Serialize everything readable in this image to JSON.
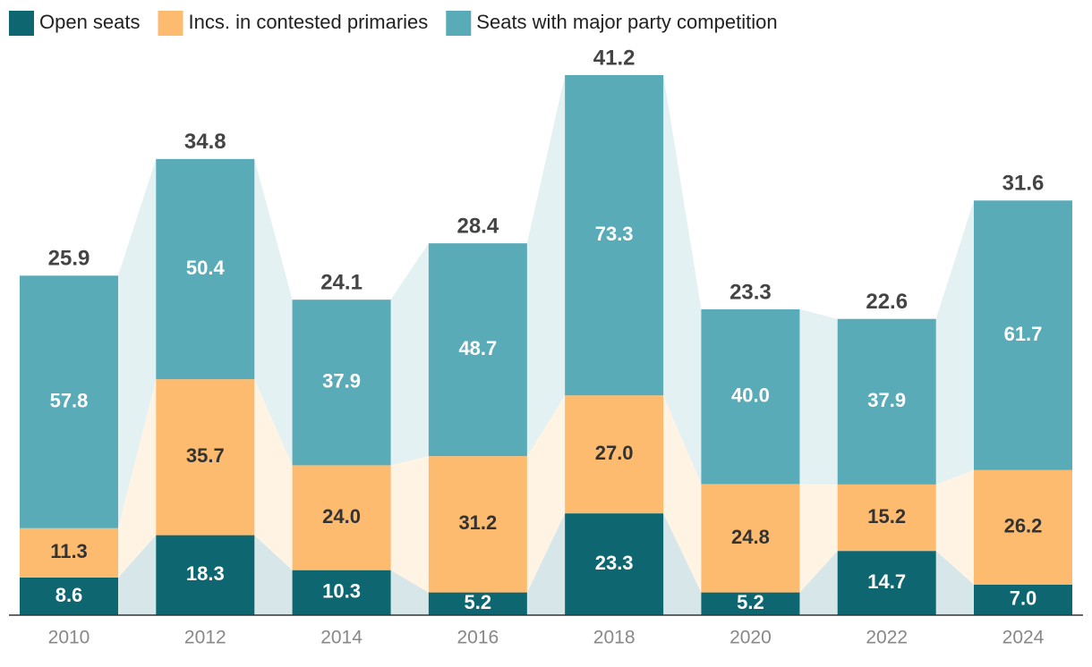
{
  "chart_data": {
    "type": "stacked-bar",
    "categories": [
      "2010",
      "2012",
      "2014",
      "2016",
      "2018",
      "2020",
      "2022",
      "2024"
    ],
    "series": [
      {
        "name": "Open seats",
        "color": "#0e6670",
        "label_color": "#ffffff",
        "values": [
          8.6,
          18.3,
          10.3,
          5.2,
          23.3,
          5.2,
          14.7,
          7.0
        ],
        "value_labels": [
          "8.6",
          "18.3",
          "10.3",
          "5.2",
          "23.3",
          "5.2",
          "14.7",
          "7.0"
        ]
      },
      {
        "name": "Incs. in contested primaries",
        "color": "#fdbb6f",
        "label_color": "#333333",
        "values": [
          11.3,
          35.7,
          24.0,
          31.2,
          27.0,
          24.8,
          15.2,
          26.2
        ],
        "value_labels": [
          "11.3",
          "35.7",
          "24.0",
          "31.2",
          "27.0",
          "24.8",
          "15.2",
          "26.2"
        ]
      },
      {
        "name": "Seats with major party competition",
        "color": "#5aabb8",
        "label_color": "#ffffff",
        "values": [
          57.8,
          50.4,
          37.9,
          48.7,
          73.3,
          40.0,
          37.9,
          61.7
        ],
        "value_labels": [
          "57.8",
          "50.4",
          "37.9",
          "48.7",
          "73.3",
          "40.0",
          "37.9",
          "61.7"
        ]
      }
    ],
    "top_values": [
      25.9,
      34.8,
      24.1,
      28.4,
      41.2,
      23.3,
      22.6,
      31.6
    ],
    "legend": "top-left"
  }
}
